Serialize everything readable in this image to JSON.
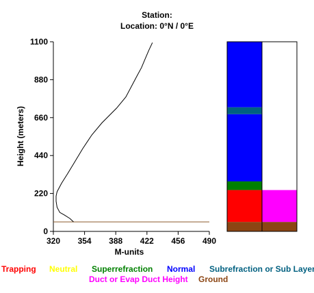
{
  "header": {
    "line1": "Station:",
    "line2": "Location:  0°N /  0°E"
  },
  "chart_data": [
    {
      "type": "line",
      "xlabel": "M-units",
      "ylabel": "Height (meters)",
      "xlim": [
        320,
        490
      ],
      "ylim": [
        0,
        1100
      ],
      "x_ticks": [
        "320",
        "354",
        "388",
        "422",
        "456",
        "490"
      ],
      "y_ticks": [
        "0",
        "220",
        "440",
        "660",
        "880",
        "1100"
      ],
      "series": [
        {
          "color": "#000000",
          "points": [
            [
              342,
              55
            ],
            [
              338,
              75
            ],
            [
              332,
              95
            ],
            [
              327,
              110
            ],
            [
              324,
              140
            ],
            [
              323,
              175
            ],
            [
              323,
              205
            ],
            [
              324,
              230
            ],
            [
              329,
              280
            ],
            [
              335,
              330
            ],
            [
              343,
              400
            ],
            [
              352,
              480
            ],
            [
              362,
              560
            ],
            [
              373,
              630
            ],
            [
              389,
              715
            ],
            [
              399,
              780
            ],
            [
              405,
              840
            ],
            [
              411,
              900
            ],
            [
              416,
              950
            ],
            [
              420,
              1000
            ],
            [
              424,
              1050
            ],
            [
              428,
              1095
            ]
          ]
        }
      ],
      "reference_line": {
        "y": 55,
        "color": "#8B5A2B"
      }
    },
    {
      "type": "bar",
      "columns": [
        {
          "segments": [
            {
              "from": 0,
              "to": 55,
              "color": "#8B4513"
            },
            {
              "from": 55,
              "to": 240,
              "color": "#FF0000"
            },
            {
              "from": 240,
              "to": 290,
              "color": "#008000"
            },
            {
              "from": 290,
              "to": 680,
              "color": "#0000FF"
            },
            {
              "from": 680,
              "to": 720,
              "color": "#006080"
            },
            {
              "from": 720,
              "to": 1100,
              "color": "#0000FF"
            }
          ]
        },
        {
          "segments": [
            {
              "from": 0,
              "to": 55,
              "color": "#8B4513"
            },
            {
              "from": 55,
              "to": 240,
              "color": "#FF00FF"
            },
            {
              "from": 240,
              "to": 1100,
              "color": "#FFFFFF"
            }
          ]
        }
      ]
    }
  ],
  "legend": [
    {
      "label": "Trapping",
      "color": "#FF0000"
    },
    {
      "label": "Neutral",
      "color": "#FFFF00"
    },
    {
      "label": "Superrefraction",
      "color": "#008000"
    },
    {
      "label": "Normal",
      "color": "#0000FF"
    },
    {
      "label": "Subrefraction or Sub Layer",
      "color": "#006080"
    },
    {
      "label": "Duct or Evap Duct Height",
      "color": "#FF00FF"
    },
    {
      "label": "Ground",
      "color": "#8B4513"
    }
  ]
}
